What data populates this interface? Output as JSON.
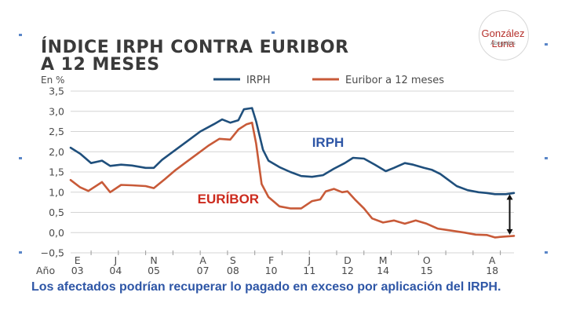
{
  "logo": {
    "name": "González Luna",
    "subtitle": "Abogados"
  },
  "caption": "Los afectados podrían recuperar lo pagado en exceso por aplicación del IRPH.",
  "colors": {
    "irph": "#1f4f7c",
    "euribor": "#c85a38",
    "irph_label": "#2e56a6",
    "euribor_label": "#cc2b1e",
    "caption": "#2e56a6",
    "logo": "#b5302b"
  },
  "chart_data": {
    "type": "line",
    "title_line1": "ÍNDICE IRPH CONTRA EURIBOR",
    "title_line2": "A 12 MESES",
    "ylabel": "En %",
    "xlabel": "Año",
    "ylim": [
      -0.5,
      3.5
    ],
    "yticks": [
      "3,5",
      "3,0",
      "2,5",
      "2,0",
      "1,5",
      "1,0",
      "0,5",
      "0,0",
      "−0,5"
    ],
    "xlim": [
      2002.75,
      2019.0
    ],
    "x_month_ticks": [
      {
        "x": 2003.0,
        "label": "E"
      },
      {
        "x": 2004.4,
        "label": "J"
      },
      {
        "x": 2005.8,
        "label": "N"
      },
      {
        "x": 2007.6,
        "label": "A"
      },
      {
        "x": 2008.7,
        "label": "S"
      },
      {
        "x": 2010.1,
        "label": "F"
      },
      {
        "x": 2011.5,
        "label": "J"
      },
      {
        "x": 2012.9,
        "label": "D"
      },
      {
        "x": 2014.2,
        "label": "M"
      },
      {
        "x": 2015.8,
        "label": "O"
      },
      {
        "x": 2018.2,
        "label": "A"
      }
    ],
    "x_year_ticks": [
      {
        "x": 2003.0,
        "label": "03"
      },
      {
        "x": 2004.4,
        "label": "04"
      },
      {
        "x": 2005.8,
        "label": "05"
      },
      {
        "x": 2007.6,
        "label": "07"
      },
      {
        "x": 2008.7,
        "label": "08"
      },
      {
        "x": 2010.1,
        "label": "10"
      },
      {
        "x": 2011.5,
        "label": "11"
      },
      {
        "x": 2012.9,
        "label": "12"
      },
      {
        "x": 2014.2,
        "label": "14"
      },
      {
        "x": 2015.8,
        "label": "15"
      },
      {
        "x": 2018.2,
        "label": "18"
      }
    ],
    "legend": [
      "IRPH",
      "Euribor a 12 meses"
    ],
    "legend_position": "top-right",
    "grid": true,
    "annotations": [
      {
        "text": "IRPH",
        "x": 2011.6,
        "y": 2.12,
        "color_key": "irph_label"
      },
      {
        "text": "EURÍBOR",
        "x": 2007.4,
        "y": 0.72,
        "color_key": "euribor_label"
      }
    ],
    "spread_marker": {
      "x": 2018.9,
      "y_from": 0.95,
      "y_to": -0.05
    },
    "series": [
      {
        "name": "IRPH",
        "color": "#1f4f7c",
        "points": [
          [
            2002.75,
            2.1
          ],
          [
            2003.1,
            1.95
          ],
          [
            2003.5,
            1.72
          ],
          [
            2003.9,
            1.78
          ],
          [
            2004.2,
            1.65
          ],
          [
            2004.6,
            1.68
          ],
          [
            2005.0,
            1.66
          ],
          [
            2005.5,
            1.6
          ],
          [
            2005.8,
            1.6
          ],
          [
            2006.1,
            1.8
          ],
          [
            2006.6,
            2.05
          ],
          [
            2007.0,
            2.25
          ],
          [
            2007.5,
            2.5
          ],
          [
            2008.0,
            2.68
          ],
          [
            2008.3,
            2.8
          ],
          [
            2008.6,
            2.72
          ],
          [
            2008.9,
            2.78
          ],
          [
            2009.1,
            3.05
          ],
          [
            2009.4,
            3.08
          ],
          [
            2009.55,
            2.75
          ],
          [
            2009.8,
            2.05
          ],
          [
            2010.0,
            1.78
          ],
          [
            2010.4,
            1.62
          ],
          [
            2010.8,
            1.5
          ],
          [
            2011.2,
            1.4
          ],
          [
            2011.6,
            1.38
          ],
          [
            2012.0,
            1.42
          ],
          [
            2012.4,
            1.58
          ],
          [
            2012.8,
            1.72
          ],
          [
            2013.1,
            1.85
          ],
          [
            2013.5,
            1.83
          ],
          [
            2013.9,
            1.68
          ],
          [
            2014.3,
            1.52
          ],
          [
            2014.6,
            1.6
          ],
          [
            2015.0,
            1.72
          ],
          [
            2015.3,
            1.68
          ],
          [
            2015.7,
            1.6
          ],
          [
            2016.0,
            1.55
          ],
          [
            2016.3,
            1.45
          ],
          [
            2016.6,
            1.3
          ],
          [
            2016.9,
            1.15
          ],
          [
            2017.3,
            1.05
          ],
          [
            2017.7,
            1.0
          ],
          [
            2018.0,
            0.98
          ],
          [
            2018.3,
            0.95
          ],
          [
            2018.7,
            0.95
          ],
          [
            2019.0,
            0.98
          ]
        ]
      },
      {
        "name": "Euribor a 12 meses",
        "color": "#c85a38",
        "points": [
          [
            2002.75,
            1.3
          ],
          [
            2003.1,
            1.12
          ],
          [
            2003.4,
            1.03
          ],
          [
            2003.9,
            1.25
          ],
          [
            2004.2,
            1.0
          ],
          [
            2004.6,
            1.18
          ],
          [
            2005.0,
            1.17
          ],
          [
            2005.5,
            1.15
          ],
          [
            2005.8,
            1.1
          ],
          [
            2006.2,
            1.32
          ],
          [
            2006.6,
            1.55
          ],
          [
            2007.0,
            1.75
          ],
          [
            2007.4,
            1.95
          ],
          [
            2007.8,
            2.15
          ],
          [
            2008.2,
            2.32
          ],
          [
            2008.6,
            2.3
          ],
          [
            2008.9,
            2.55
          ],
          [
            2009.2,
            2.68
          ],
          [
            2009.4,
            2.72
          ],
          [
            2009.55,
            2.2
          ],
          [
            2009.75,
            1.2
          ],
          [
            2010.0,
            0.88
          ],
          [
            2010.4,
            0.65
          ],
          [
            2010.8,
            0.6
          ],
          [
            2011.2,
            0.6
          ],
          [
            2011.6,
            0.78
          ],
          [
            2011.9,
            0.82
          ],
          [
            2012.1,
            1.02
          ],
          [
            2012.4,
            1.08
          ],
          [
            2012.7,
            1.0
          ],
          [
            2012.9,
            1.02
          ],
          [
            2013.2,
            0.8
          ],
          [
            2013.5,
            0.6
          ],
          [
            2013.8,
            0.35
          ],
          [
            2014.2,
            0.25
          ],
          [
            2014.6,
            0.3
          ],
          [
            2015.0,
            0.22
          ],
          [
            2015.4,
            0.3
          ],
          [
            2015.8,
            0.22
          ],
          [
            2016.2,
            0.1
          ],
          [
            2016.7,
            0.05
          ],
          [
            2017.2,
            0.0
          ],
          [
            2017.6,
            -0.05
          ],
          [
            2018.0,
            -0.06
          ],
          [
            2018.3,
            -0.12
          ],
          [
            2018.6,
            -0.1
          ],
          [
            2019.0,
            -0.08
          ]
        ]
      }
    ]
  }
}
